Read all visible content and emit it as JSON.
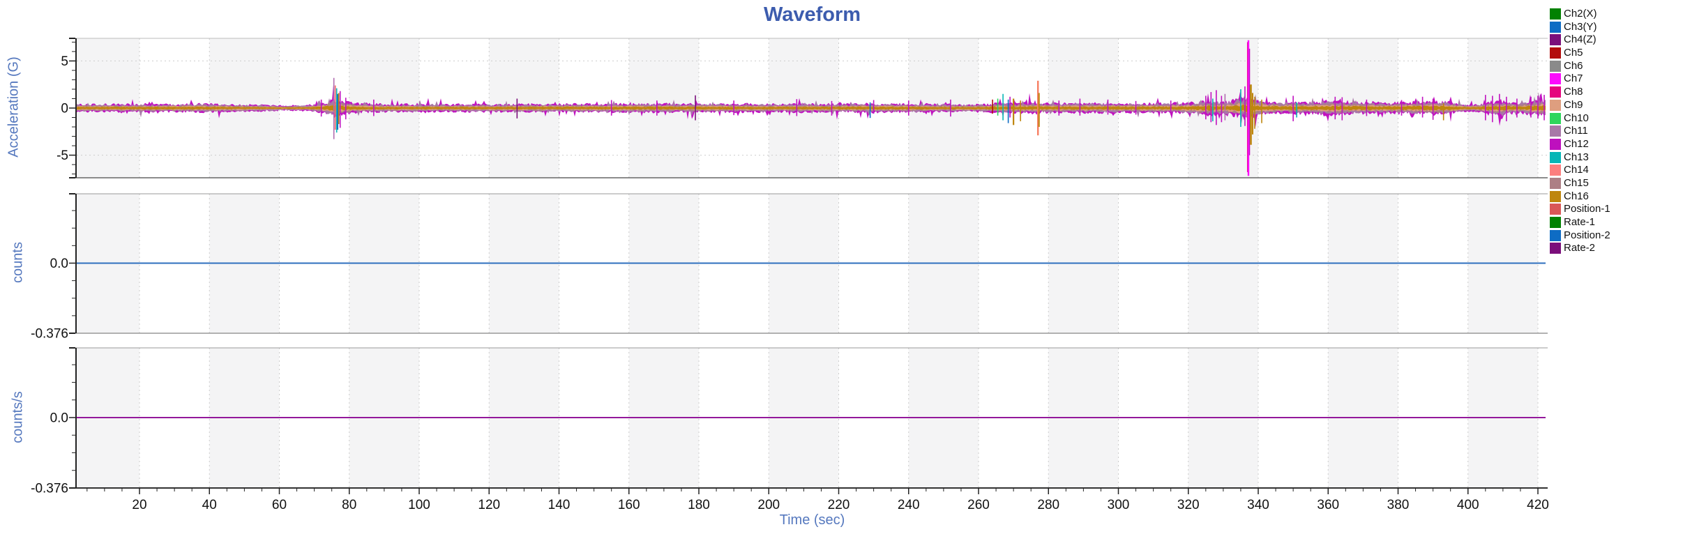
{
  "title": "Waveform",
  "accent": {
    "title_color": "#3C5CAE",
    "axis_label_color": "#5578BE",
    "tick_text_color": "#111111",
    "grid_color": "#cccccc",
    "band_color": "#f4f4f5",
    "frame_color": "#999999",
    "axis_color": "#222222"
  },
  "x_axis": {
    "label": "Time (sec)",
    "min": 2,
    "max": 422.6,
    "tick_start": 20,
    "tick_end": 420,
    "tick_step": 20,
    "minor_step": 5
  },
  "legend": {
    "items": [
      {
        "label": "Ch2(X)",
        "color": "#018101"
      },
      {
        "label": "Ch3(Y)",
        "color": "#0E6CC4"
      },
      {
        "label": "Ch4(Z)",
        "color": "#7B0F7B"
      },
      {
        "label": "Ch5",
        "color": "#B30D0D"
      },
      {
        "label": "Ch6",
        "color": "#8A8A8A"
      },
      {
        "label": "Ch7",
        "color": "#FC0CFC"
      },
      {
        "label": "Ch8",
        "color": "#E5067E"
      },
      {
        "label": "Ch9",
        "color": "#DE9E7F"
      },
      {
        "label": "Ch10",
        "color": "#2ED65C"
      },
      {
        "label": "Ch11",
        "color": "#A878A8"
      },
      {
        "label": "Ch12",
        "color": "#BE10BE"
      },
      {
        "label": "Ch13",
        "color": "#06B6B6"
      },
      {
        "label": "Ch14",
        "color": "#FC7E7E"
      },
      {
        "label": "Ch15",
        "color": "#AD7F85"
      },
      {
        "label": "Ch16",
        "color": "#BE860E"
      },
      {
        "label": "Position-1",
        "color": "#D95757"
      },
      {
        "label": "Rate-1",
        "color": "#018101"
      },
      {
        "label": "Position-2",
        "color": "#0E6CC4"
      },
      {
        "label": "Rate-2",
        "color": "#7B0F7B"
      }
    ]
  },
  "chart_data": [
    {
      "type": "line",
      "ylabel": "Acceleration (G)",
      "ylim": [
        -7.4,
        7.4
      ],
      "yticks": [
        {
          "v": 5,
          "label": "5"
        },
        {
          "v": 0,
          "label": "0"
        },
        {
          "v": -5,
          "label": "-5"
        }
      ],
      "y_minor": 1,
      "grid_y": [
        5,
        -5
      ],
      "noise_band": {
        "layers": [
          {
            "name": "Ch12",
            "color": "#C013C0",
            "scale": 1.0
          },
          {
            "name": "Ch11",
            "color": "#A878A8",
            "scale": 0.8
          },
          {
            "name": "Ch15",
            "color": "#AD7F85",
            "scale": 0.62
          },
          {
            "name": "Ch9",
            "color": "#DE9E7F",
            "scale": 0.46
          },
          {
            "name": "Ch16",
            "color": "#BE860E",
            "scale": 0.3
          }
        ],
        "envelope": [
          [
            2,
            0.5
          ],
          [
            20,
            0.52
          ],
          [
            40,
            0.55
          ],
          [
            55,
            0.42
          ],
          [
            62,
            0.33
          ],
          [
            68,
            0.4
          ],
          [
            72,
            0.6
          ],
          [
            74,
            0.85
          ],
          [
            76,
            1.15
          ],
          [
            78,
            0.85
          ],
          [
            82,
            0.62
          ],
          [
            90,
            0.52
          ],
          [
            110,
            0.5
          ],
          [
            130,
            0.52
          ],
          [
            150,
            0.55
          ],
          [
            170,
            0.58
          ],
          [
            190,
            0.55
          ],
          [
            210,
            0.55
          ],
          [
            230,
            0.58
          ],
          [
            245,
            0.55
          ],
          [
            258,
            0.45
          ],
          [
            262,
            0.5
          ],
          [
            265,
            0.65
          ],
          [
            270,
            0.62
          ],
          [
            275,
            0.7
          ],
          [
            280,
            0.62
          ],
          [
            290,
            0.65
          ],
          [
            300,
            0.62
          ],
          [
            310,
            0.62
          ],
          [
            320,
            0.68
          ],
          [
            326,
            0.95
          ],
          [
            330,
            0.85
          ],
          [
            333,
            1.0
          ],
          [
            335,
            1.3
          ],
          [
            337,
            1.45
          ],
          [
            339,
            1.05
          ],
          [
            342,
            0.85
          ],
          [
            346,
            0.72
          ],
          [
            350,
            0.8
          ],
          [
            354,
            0.7
          ],
          [
            360,
            0.92
          ],
          [
            364,
            0.85
          ],
          [
            370,
            0.72
          ],
          [
            378,
            0.7
          ],
          [
            385,
            0.8
          ],
          [
            390,
            0.92
          ],
          [
            395,
            0.75
          ],
          [
            399,
            0.45
          ],
          [
            403,
            0.5
          ],
          [
            406,
            0.85
          ],
          [
            409,
            0.9
          ],
          [
            412,
            0.8
          ],
          [
            415,
            0.65
          ],
          [
            418,
            0.9
          ],
          [
            421,
            1.05
          ],
          [
            422.5,
            1.1
          ]
        ]
      },
      "events": [
        [
          72,
          -0.9,
          0.9,
          "#C013C0"
        ],
        [
          75.6,
          -3.3,
          3.2,
          "#B06CB0"
        ],
        [
          76.0,
          -2.3,
          2.4,
          "#F06A6A"
        ],
        [
          76.4,
          -2.6,
          2.1,
          "#06B6B6"
        ],
        [
          76.7,
          -2.3,
          1.5,
          "#0E6CC4"
        ],
        [
          77.0,
          -1.7,
          1.6,
          "#BE860E"
        ],
        [
          77.4,
          -2.1,
          1.8,
          "#C013C0"
        ],
        [
          79,
          -1.2,
          1.1,
          "#C013C0"
        ],
        [
          87,
          -0.85,
          0.9,
          "#C013C0"
        ],
        [
          128,
          -1.1,
          1.0,
          "#7B0F7B"
        ],
        [
          155,
          -0.8,
          0.85,
          "#C013C0"
        ],
        [
          168,
          -0.8,
          0.8,
          "#C013C0"
        ],
        [
          179,
          -1.3,
          1.35,
          "#7B0F7B"
        ],
        [
          190,
          -0.75,
          0.8,
          "#C013C0"
        ],
        [
          208,
          -0.85,
          0.95,
          "#C013C0"
        ],
        [
          218,
          -0.8,
          0.75,
          "#C013C0"
        ],
        [
          229,
          -1.05,
          0.6,
          "#0E6CC4"
        ],
        [
          230,
          -0.6,
          0.85,
          "#C013C0"
        ],
        [
          240,
          -0.8,
          0.8,
          "#C013C0"
        ],
        [
          252,
          -0.9,
          0.9,
          "#C013C0"
        ],
        [
          264,
          -0.6,
          0.9,
          "#B30D0D"
        ],
        [
          265.5,
          -0.8,
          1.0,
          "#2ED65C"
        ],
        [
          267,
          -1.3,
          1.5,
          "#06B6B6"
        ],
        [
          268.5,
          -1.6,
          0.9,
          "#0E6CC4"
        ],
        [
          269,
          -1.0,
          1.2,
          "#C013C0"
        ],
        [
          270,
          -1.8,
          1.0,
          "#BE860E",
          2.2
        ],
        [
          272,
          -1.4,
          0.8,
          "#BE860E"
        ],
        [
          277,
          -2.9,
          2.9,
          "#F77E62",
          2.4
        ],
        [
          277.3,
          -2.0,
          1.6,
          "#BE860E",
          2
        ],
        [
          283,
          -0.8,
          0.8,
          "#C013C0"
        ],
        [
          289,
          -0.8,
          1.0,
          "#C013C0"
        ],
        [
          297,
          -0.7,
          0.9,
          "#C013C0"
        ],
        [
          305,
          -0.7,
          0.75,
          "#C013C0"
        ],
        [
          315,
          -0.7,
          0.8,
          "#C013C0"
        ],
        [
          325,
          -1.2,
          1.3,
          "#C013C0"
        ],
        [
          326.5,
          -1.5,
          1.7,
          "#C013C0"
        ],
        [
          327,
          -1.4,
          1.0,
          "#06B6B6"
        ],
        [
          328,
          -1.8,
          1.9,
          "#C013C0"
        ],
        [
          329.5,
          -1.5,
          1.3,
          "#C013C0"
        ],
        [
          330.5,
          -1.3,
          1.5,
          "#B06CB0"
        ],
        [
          335,
          -2.0,
          2.0,
          "#06B6B6"
        ],
        [
          336.2,
          -1.9,
          2.3,
          "#C013C0"
        ],
        [
          337.0,
          -6.8,
          7.0,
          "#E5067E",
          2
        ],
        [
          337.2,
          -7.2,
          7.2,
          "#FC0CFC",
          2.4
        ],
        [
          337.5,
          -5.0,
          6.3,
          "#C013C0"
        ],
        [
          337.8,
          -2.2,
          2.4,
          "#2ED65C"
        ],
        [
          337.9,
          -3.9,
          2.5,
          "#BE860E",
          2.6
        ],
        [
          338.4,
          -2.8,
          1.6,
          "#BE860E",
          2
        ],
        [
          339,
          -2.2,
          1.2,
          "#BE860E"
        ],
        [
          341,
          -1.6,
          0.9,
          "#BE860E"
        ],
        [
          350,
          -1.4,
          1.3,
          "#C013C0"
        ],
        [
          351,
          -1.0,
          0.6,
          "#06B6B6"
        ],
        [
          362,
          -1.2,
          1.2,
          "#C013C0"
        ],
        [
          364,
          -1.3,
          1.15,
          "#C013C0"
        ],
        [
          371,
          -0.85,
          0.9,
          "#C013C0"
        ],
        [
          381,
          -0.8,
          0.85,
          "#C013C0"
        ],
        [
          387,
          -1.0,
          1.2,
          "#C013C0"
        ],
        [
          390,
          -1.25,
          1.0,
          "#C013C0"
        ],
        [
          393,
          -1.3,
          0.5,
          "#BE860E"
        ],
        [
          405,
          -1.3,
          1.4,
          "#C013C0"
        ],
        [
          407,
          -1.5,
          1.3,
          "#C013C0"
        ],
        [
          409,
          -1.2,
          1.5,
          "#C013C0"
        ],
        [
          411,
          -1.4,
          1.2,
          "#C013C0"
        ],
        [
          414,
          -1.0,
          1.0,
          "#C013C0"
        ],
        [
          418,
          -1.0,
          1.2,
          "#C013C0"
        ],
        [
          420,
          -1.1,
          1.3,
          "#C013C0"
        ],
        [
          421.8,
          -1.3,
          1.4,
          "#C013C0"
        ]
      ]
    },
    {
      "type": "line",
      "ylabel": "counts",
      "ylim": [
        -0.376,
        0.372
      ],
      "yticks": [
        {
          "v": 0,
          "label": "0.0"
        },
        {
          "v": -0.376,
          "label": "-0.376"
        }
      ],
      "y_minor": 0.094,
      "series": [
        {
          "name": "Position-2",
          "color": "#2E6FBE",
          "value": 0.0
        }
      ]
    },
    {
      "type": "line",
      "ylabel": "counts/s",
      "ylim": [
        -0.376,
        0.372
      ],
      "yticks": [
        {
          "v": 0,
          "label": "0.0"
        },
        {
          "v": -0.376,
          "label": "-0.376"
        }
      ],
      "y_minor": 0.094,
      "series": [
        {
          "name": "Rate-2",
          "color": "#93189B",
          "value": 0.0
        }
      ]
    }
  ]
}
